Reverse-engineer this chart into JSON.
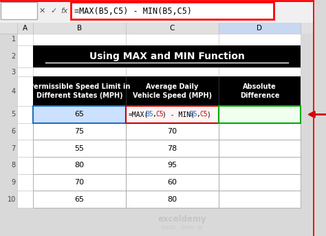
{
  "title": "Using MAX and MIN Function",
  "formula_bar_text": "=MAX(B5,C5) - MIN(B5,C5)",
  "col_headers": [
    "A",
    "B",
    "C",
    "D"
  ],
  "row_numbers": [
    "1",
    "2",
    "3",
    "4",
    "5",
    "6",
    "7",
    "8",
    "9",
    "10"
  ],
  "header_row4_b": "Permissible Speed Limit in\nDifferent States (MPH)",
  "header_row4_c": "Average Daily\nVehicle Speed (MPH)",
  "header_row4_d": "Absolute\nDifference",
  "b_vals": [
    "65",
    "75",
    "55",
    "80",
    "70",
    "65"
  ],
  "c_vals": [
    "",
    "70",
    "78",
    "95",
    "60",
    "80"
  ],
  "row_labels": [
    "5",
    "6",
    "7",
    "8",
    "9",
    "10"
  ],
  "bg_color": "#d9d9d9",
  "formula_parts": [
    [
      "=MAX(",
      "black"
    ],
    [
      "B5",
      "#1f6fbf"
    ],
    [
      ",",
      "black"
    ],
    [
      "C5",
      "#cc0000"
    ],
    [
      ") - MIN(",
      "black"
    ],
    [
      "B5",
      "#1f6fbf"
    ],
    [
      ",",
      "black"
    ],
    [
      "C5",
      "#cc0000"
    ],
    [
      ")",
      "black"
    ]
  ],
  "cell_bg_b5": "#cce0ff",
  "cell_bg_c5": "#fff5f5",
  "cell_bg_d5": "#f0fff0",
  "blue_border": "#1f6fbf",
  "red_border": "#cc0000",
  "green_border": "#00aa00"
}
